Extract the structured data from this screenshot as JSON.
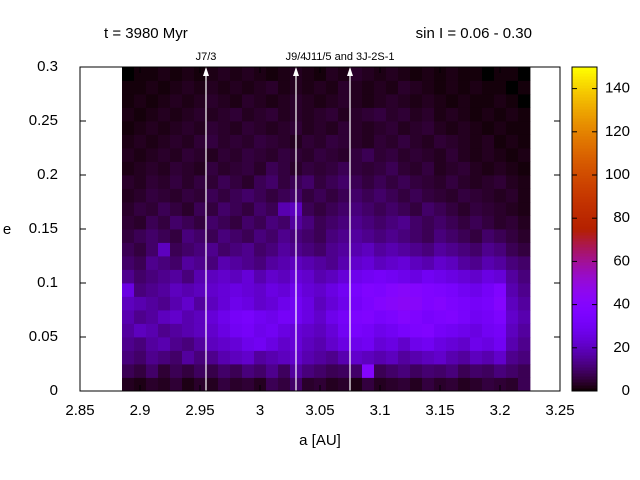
{
  "chart_data": {
    "type": "heatmap",
    "title_left": "t = 3980 Myr",
    "title_right": "sin I = 0.06 - 0.30",
    "xlabel": "a [AU]",
    "ylabel": "e",
    "xlim": [
      2.85,
      3.25
    ],
    "ylim": [
      0,
      0.3
    ],
    "xticks": [
      2.85,
      2.9,
      2.95,
      3,
      3.05,
      3.1,
      3.15,
      3.2,
      3.25
    ],
    "yticks": [
      0,
      0.05,
      0.1,
      0.15,
      0.2,
      0.25,
      0.3
    ],
    "zlim": [
      0,
      150
    ],
    "zticks": [
      0,
      20,
      40,
      60,
      80,
      100,
      120,
      140
    ],
    "annotations": [
      {
        "x": 2.955,
        "label": "J7/3"
      },
      {
        "x": 3.03,
        "label": "J9/4"
      },
      {
        "x": 3.075,
        "label": "J11/5 and 3J-2S-1"
      }
    ],
    "xbins": [
      2.885,
      2.895,
      2.905,
      2.915,
      2.925,
      2.935,
      2.945,
      2.955,
      2.965,
      2.975,
      2.985,
      2.995,
      3.005,
      3.015,
      3.025,
      3.035,
      3.045,
      3.055,
      3.065,
      3.075,
      3.085,
      3.095,
      3.105,
      3.115,
      3.125,
      3.135,
      3.145,
      3.155,
      3.165,
      3.175,
      3.185,
      3.195,
      3.205,
      3.215,
      3.225
    ],
    "ybins": [
      0,
      0.0125,
      0.025,
      0.0375,
      0.05,
      0.0625,
      0.075,
      0.0875,
      0.1,
      0.1125,
      0.125,
      0.1375,
      0.15,
      0.1625,
      0.175,
      0.1875,
      0.2,
      0.2125,
      0.225,
      0.2375,
      0.25,
      0.2625,
      0.275,
      0.2875,
      0.3
    ],
    "z": [
      [
        3,
        2,
        4,
        3,
        5,
        2,
        4,
        3,
        6,
        4,
        5,
        3,
        8,
        6,
        10,
        4,
        5,
        3,
        4,
        2,
        6,
        3,
        4,
        5,
        3,
        6,
        4,
        5,
        3,
        4,
        6,
        5,
        4,
        8
      ],
      [
        8,
        6,
        10,
        5,
        8,
        6,
        9,
        7,
        10,
        8,
        12,
        10,
        14,
        9,
        16,
        12,
        10,
        8,
        9,
        10,
        40,
        8,
        10,
        12,
        9,
        11,
        10,
        12,
        8,
        10,
        9,
        12,
        10,
        8
      ],
      [
        12,
        10,
        14,
        12,
        10,
        16,
        12,
        14,
        18,
        20,
        22,
        16,
        18,
        20,
        22,
        18,
        16,
        14,
        18,
        22,
        20,
        18,
        20,
        16,
        18,
        20,
        22,
        18,
        16,
        20,
        18,
        22,
        14,
        12
      ],
      [
        14,
        12,
        16,
        18,
        14,
        12,
        16,
        20,
        22,
        24,
        28,
        30,
        26,
        22,
        24,
        20,
        18,
        22,
        26,
        28,
        30,
        24,
        26,
        22,
        28,
        30,
        26,
        24,
        22,
        28,
        26,
        30,
        18,
        14
      ],
      [
        16,
        20,
        18,
        14,
        16,
        18,
        20,
        22,
        26,
        30,
        32,
        28,
        30,
        26,
        24,
        22,
        20,
        24,
        30,
        34,
        32,
        28,
        30,
        34,
        36,
        38,
        32,
        30,
        28,
        26,
        30,
        32,
        20,
        16
      ],
      [
        18,
        14,
        16,
        20,
        22,
        18,
        20,
        24,
        28,
        32,
        34,
        30,
        28,
        32,
        30,
        26,
        22,
        28,
        32,
        36,
        38,
        34,
        36,
        40,
        38,
        34,
        36,
        38,
        34,
        30,
        32,
        36,
        22,
        18
      ],
      [
        20,
        18,
        16,
        14,
        18,
        22,
        16,
        20,
        24,
        28,
        26,
        22,
        24,
        28,
        30,
        26,
        20,
        24,
        28,
        32,
        36,
        40,
        42,
        44,
        42,
        38,
        40,
        36,
        34,
        32,
        34,
        40,
        20,
        16
      ],
      [
        26,
        12,
        14,
        16,
        20,
        18,
        20,
        22,
        24,
        26,
        24,
        22,
        26,
        24,
        28,
        24,
        22,
        26,
        30,
        34,
        38,
        36,
        40,
        42,
        40,
        38,
        36,
        34,
        30,
        28,
        32,
        38,
        18,
        14
      ],
      [
        14,
        10,
        12,
        14,
        16,
        12,
        18,
        20,
        22,
        20,
        24,
        18,
        22,
        20,
        24,
        22,
        18,
        20,
        24,
        28,
        30,
        32,
        30,
        28,
        26,
        30,
        28,
        26,
        24,
        22,
        26,
        24,
        16,
        12
      ],
      [
        10,
        8,
        14,
        12,
        10,
        16,
        14,
        12,
        18,
        16,
        14,
        12,
        16,
        18,
        20,
        18,
        16,
        14,
        18,
        22,
        24,
        20,
        22,
        24,
        20,
        18,
        22,
        20,
        16,
        14,
        18,
        16,
        12,
        10
      ],
      [
        8,
        6,
        10,
        20,
        8,
        10,
        12,
        14,
        10,
        12,
        14,
        10,
        12,
        16,
        14,
        12,
        10,
        14,
        16,
        18,
        20,
        16,
        18,
        16,
        14,
        12,
        16,
        14,
        12,
        10,
        14,
        12,
        8,
        6
      ],
      [
        6,
        8,
        10,
        8,
        6,
        12,
        10,
        8,
        12,
        10,
        8,
        12,
        10,
        14,
        12,
        10,
        8,
        12,
        14,
        16,
        14,
        12,
        14,
        12,
        10,
        8,
        12,
        10,
        8,
        6,
        10,
        8,
        6,
        4
      ],
      [
        5,
        4,
        8,
        6,
        10,
        8,
        6,
        10,
        8,
        6,
        10,
        8,
        12,
        10,
        16,
        12,
        8,
        10,
        12,
        14,
        12,
        10,
        12,
        14,
        10,
        8,
        10,
        8,
        6,
        8,
        6,
        4,
        5,
        3
      ],
      [
        4,
        6,
        5,
        8,
        6,
        4,
        8,
        6,
        10,
        8,
        6,
        10,
        8,
        18,
        20,
        8,
        6,
        8,
        10,
        12,
        10,
        8,
        10,
        8,
        6,
        10,
        8,
        6,
        4,
        6,
        5,
        4,
        3,
        2
      ],
      [
        3,
        4,
        6,
        5,
        4,
        6,
        5,
        8,
        6,
        8,
        10,
        8,
        6,
        8,
        10,
        6,
        8,
        6,
        8,
        10,
        8,
        10,
        8,
        6,
        8,
        6,
        5,
        4,
        6,
        5,
        4,
        3,
        4,
        2
      ],
      [
        4,
        3,
        5,
        4,
        6,
        4,
        6,
        5,
        8,
        6,
        4,
        8,
        10,
        6,
        8,
        10,
        6,
        8,
        10,
        8,
        6,
        8,
        6,
        8,
        6,
        5,
        4,
        6,
        4,
        3,
        4,
        5,
        3,
        2
      ],
      [
        2,
        3,
        4,
        3,
        5,
        4,
        3,
        6,
        4,
        5,
        6,
        4,
        8,
        6,
        4,
        6,
        5,
        6,
        8,
        6,
        5,
        6,
        8,
        5,
        4,
        6,
        3,
        4,
        5,
        3,
        2,
        3,
        2,
        1
      ],
      [
        3,
        2,
        3,
        4,
        3,
        5,
        4,
        3,
        5,
        4,
        6,
        5,
        4,
        6,
        5,
        4,
        6,
        5,
        4,
        6,
        8,
        5,
        6,
        4,
        5,
        4,
        3,
        5,
        3,
        2,
        3,
        2,
        1,
        2
      ],
      [
        2,
        3,
        2,
        3,
        4,
        3,
        5,
        6,
        4,
        5,
        4,
        6,
        5,
        4,
        3,
        5,
        4,
        6,
        5,
        4,
        3,
        5,
        4,
        6,
        4,
        3,
        5,
        4,
        3,
        2,
        3,
        1,
        2,
        1
      ],
      [
        1,
        2,
        3,
        2,
        3,
        4,
        3,
        5,
        4,
        3,
        5,
        4,
        3,
        4,
        5,
        3,
        4,
        3,
        5,
        4,
        3,
        4,
        5,
        3,
        4,
        5,
        3,
        2,
        3,
        2,
        1,
        2,
        1,
        1
      ],
      [
        2,
        1,
        2,
        3,
        2,
        3,
        4,
        3,
        4,
        5,
        3,
        4,
        5,
        3,
        4,
        3,
        4,
        5,
        3,
        4,
        5,
        6,
        4,
        5,
        3,
        4,
        2,
        3,
        2,
        1,
        2,
        1,
        2,
        1
      ],
      [
        1,
        2,
        1,
        2,
        3,
        2,
        3,
        4,
        3,
        2,
        4,
        3,
        2,
        3,
        4,
        3,
        2,
        3,
        4,
        3,
        2,
        3,
        4,
        3,
        2,
        3,
        2,
        1,
        2,
        1,
        1,
        2,
        1,
        0
      ],
      [
        1,
        1,
        2,
        1,
        2,
        3,
        2,
        3,
        2,
        3,
        2,
        3,
        4,
        2,
        3,
        2,
        3,
        2,
        4,
        3,
        2,
        3,
        2,
        4,
        3,
        2,
        1,
        2,
        1,
        2,
        1,
        1,
        0,
        1
      ],
      [
        0,
        1,
        1,
        2,
        1,
        2,
        1,
        2,
        3,
        2,
        3,
        2,
        1,
        2,
        3,
        2,
        1,
        3,
        2,
        4,
        3,
        2,
        3,
        2,
        1,
        2,
        1,
        2,
        1,
        1,
        0,
        1,
        1,
        0
      ]
    ],
    "colormap": "gnuplot"
  }
}
